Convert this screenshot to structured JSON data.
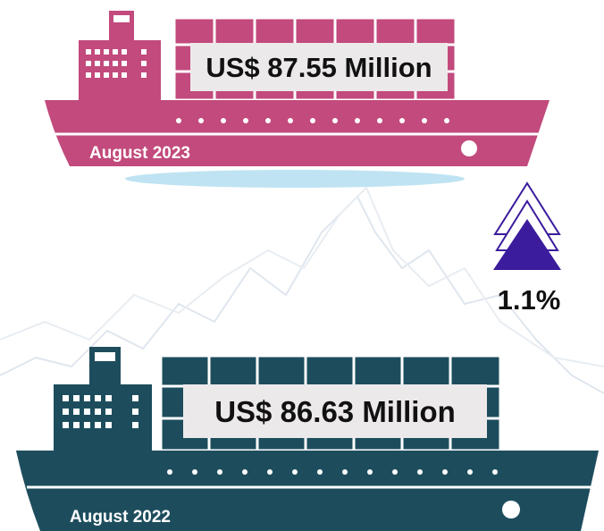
{
  "ships": [
    {
      "amount": "US$ 87.55 Million",
      "period": "August 2023"
    },
    {
      "amount": "US$ 86.63 Million",
      "period": "August 2022"
    }
  ],
  "change": "1.1%"
}
